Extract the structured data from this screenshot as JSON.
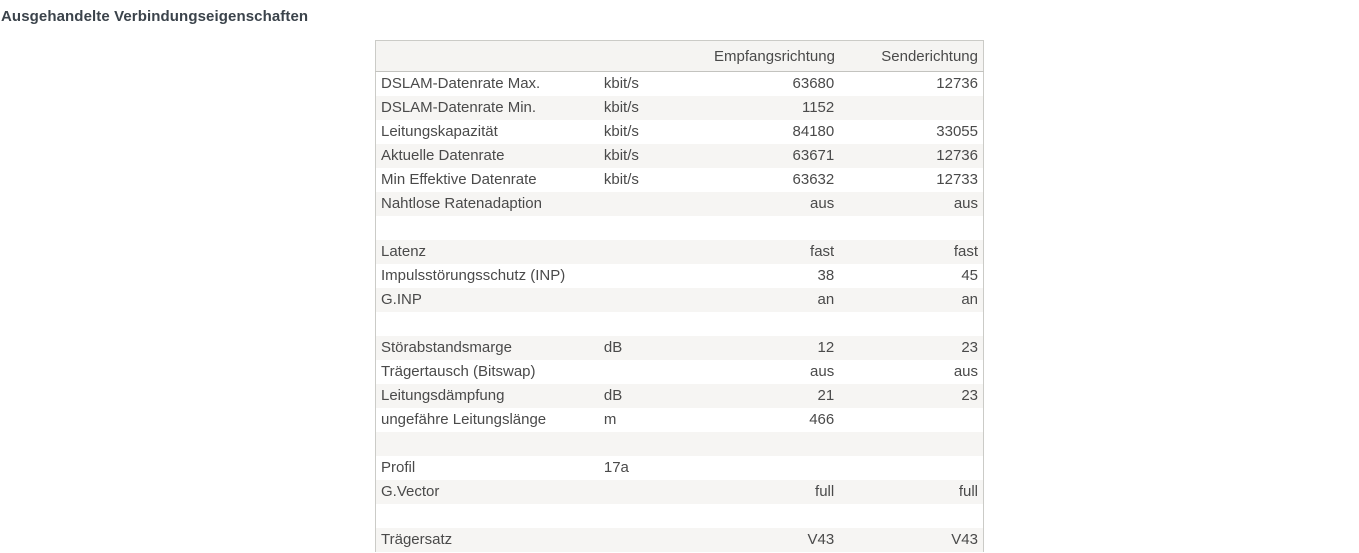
{
  "title": "Ausgehandelte Verbindungseigenschaften",
  "table": {
    "header": {
      "label": "",
      "unit": "",
      "receive": "Empfangsrichtung",
      "send": "Senderichtung"
    },
    "rows": [
      {
        "label": "DSLAM-Datenrate Max.",
        "unit": "kbit/s",
        "receive": "63680",
        "send": "12736"
      },
      {
        "label": "DSLAM-Datenrate Min.",
        "unit": "kbit/s",
        "receive": "1152",
        "send": ""
      },
      {
        "label": "Leitungskapazität",
        "unit": "kbit/s",
        "receive": "84180",
        "send": "33055"
      },
      {
        "label": "Aktuelle Datenrate",
        "unit": "kbit/s",
        "receive": "63671",
        "send": "12736"
      },
      {
        "label": "Min Effektive Datenrate",
        "unit": "kbit/s",
        "receive": "63632",
        "send": "12733"
      },
      {
        "label": "Nahtlose Ratenadaption",
        "unit": "",
        "receive": "aus",
        "send": "aus"
      },
      {
        "label": "",
        "unit": "",
        "receive": "",
        "send": ""
      },
      {
        "label": "Latenz",
        "unit": "",
        "receive": "fast",
        "send": "fast"
      },
      {
        "label": "Impulsstörungsschutz (INP)",
        "unit": "",
        "receive": "38",
        "send": "45"
      },
      {
        "label": "G.INP",
        "unit": "",
        "receive": "an",
        "send": "an"
      },
      {
        "label": "",
        "unit": "",
        "receive": "",
        "send": ""
      },
      {
        "label": "Störabstandsmarge",
        "unit": "dB",
        "receive": "12",
        "send": "23"
      },
      {
        "label": "Trägertausch (Bitswap)",
        "unit": "",
        "receive": "aus",
        "send": "aus"
      },
      {
        "label": "Leitungsdämpfung",
        "unit": "dB",
        "receive": "21",
        "send": "23"
      },
      {
        "label": "ungefähre Leitungslänge",
        "unit": "m",
        "receive": "466",
        "send": ""
      },
      {
        "label": "",
        "unit": "",
        "receive": "",
        "send": ""
      },
      {
        "label": "Profil",
        "unit": "17a",
        "receive": "",
        "send": ""
      },
      {
        "label": "G.Vector",
        "unit": "",
        "receive": "full",
        "send": "full"
      },
      {
        "label": "",
        "unit": "",
        "receive": "",
        "send": ""
      },
      {
        "label": "Trägersatz",
        "unit": "",
        "receive": "V43",
        "send": "V43"
      }
    ]
  },
  "colors": {
    "header_background": "#f5f4f2",
    "zebra_row_background": "#f6f5f3",
    "table_border": "#cbcbc7",
    "text": "#4a4a4a",
    "title_text": "#3b434b"
  }
}
